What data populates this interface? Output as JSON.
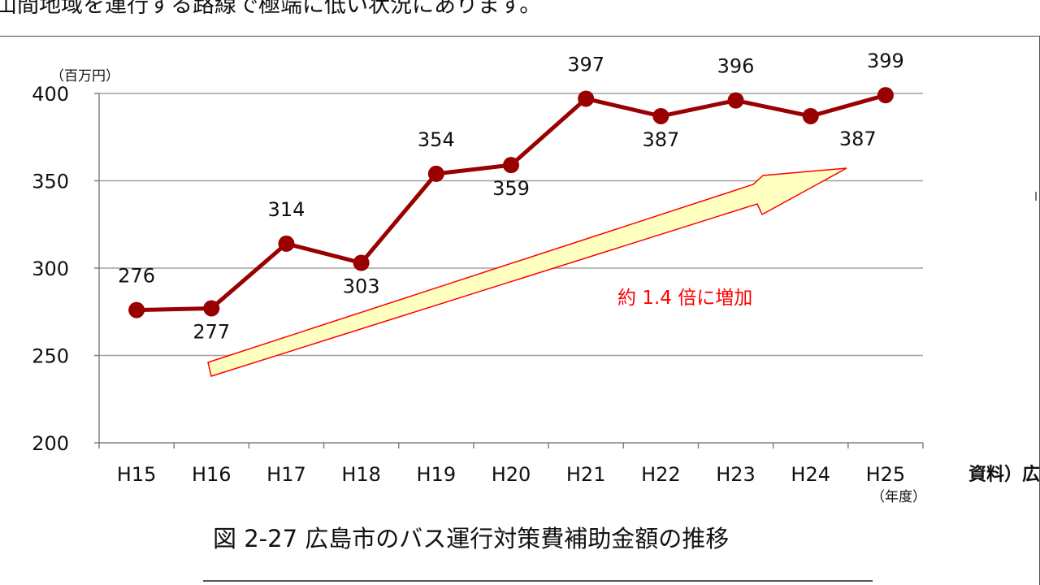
{
  "header": {
    "text": "山間地域を運行する路線で極端に低い状況にあります。"
  },
  "source_label": "資料）広",
  "caption": "図 2-27  広島市のバス運行対策費補助金額の推移",
  "chart_data": {
    "type": "line",
    "title": "",
    "xlabel": "（年度）",
    "ylabel": "（百万円）",
    "categories": [
      "H15",
      "H16",
      "H17",
      "H18",
      "H19",
      "H20",
      "H21",
      "H22",
      "H23",
      "H24",
      "H25"
    ],
    "series": [
      {
        "values": [
          276,
          277,
          314,
          303,
          354,
          359,
          397,
          387,
          396,
          387,
          399
        ]
      }
    ],
    "ylim": [
      200,
      400
    ],
    "yticks": [
      200,
      250,
      300,
      350,
      400
    ],
    "grid": true,
    "annotation": "約 1.4 倍に増加",
    "colors": {
      "line": "#990000",
      "annotation": "#ff0000",
      "arrow_fill": "#ffffc0",
      "arrow_stroke": "#ff0000",
      "grid": "#a0a0a0"
    }
  }
}
